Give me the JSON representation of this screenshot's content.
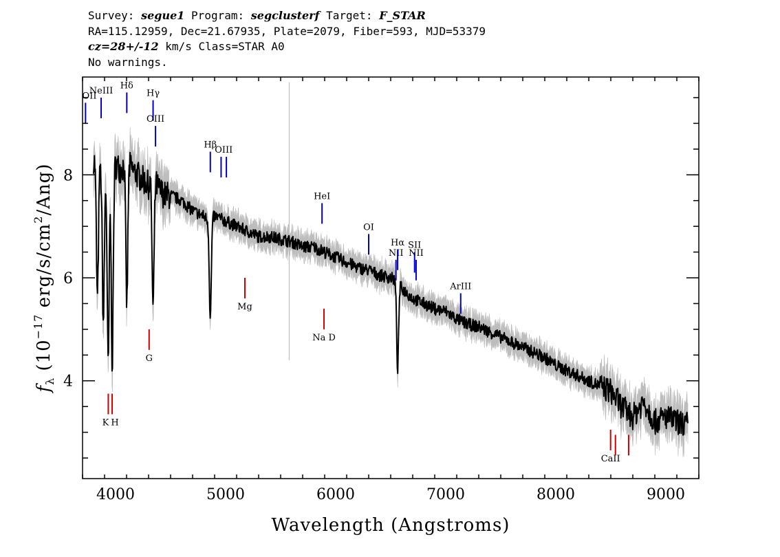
{
  "header": {
    "line1": {
      "survey_label": "Survey:",
      "survey": "segue1",
      "program_label": "Program:",
      "program": "segclusterf",
      "target_label": "Target:",
      "target": "F_STAR"
    },
    "line2": "RA=115.12959, Dec=21.67935, Plate=2079, Fiber=593, MJD=53379",
    "line3": {
      "cz": "cz=28+/-12",
      "rest": " km/s Class=STAR A0"
    },
    "line4": "No warnings."
  },
  "colors": {
    "flux": "#000000",
    "error": "#bdbdbd",
    "emission": "#0000cc",
    "absorption": "#cc0000",
    "axis": "#000000"
  },
  "chart_data": {
    "type": "line",
    "title": "",
    "xlabel": "Wavelength (Angstroms)",
    "ylabel": "fλ (10^-17 erg/s/cm^2/Ang)",
    "ylabel_parts": {
      "f": "f",
      "sub": "λ",
      "pre": " (10",
      "exp1": "−17",
      "mid": " erg/s/cm",
      "exp2": "2",
      "post": "/Ang)"
    },
    "xlim": [
      3700,
      9300
    ],
    "ylim": [
      2.1,
      9.9
    ],
    "xticks": [
      4000,
      5000,
      6000,
      7000,
      8000,
      9000
    ],
    "xtick_labels": [
      "4000",
      "5000",
      "6000",
      "7000",
      "8000",
      "9000"
    ],
    "yticks": [
      4,
      6,
      8
    ],
    "ytick_labels": [
      "4",
      "6",
      "8"
    ],
    "grid": false,
    "series": [
      {
        "role": "flux",
        "x": [
          3800,
          3830,
          3860,
          3900,
          3950,
          4000,
          4050,
          4100,
          4150,
          4200,
          4250,
          4300,
          4350,
          4400,
          4450,
          4500,
          4600,
          4700,
          4800,
          4850,
          4900,
          5000,
          5100,
          5200,
          5300,
          5400,
          5500,
          5600,
          5700,
          5800,
          5900,
          6000,
          6100,
          6200,
          6300,
          6400,
          6500,
          6560,
          6600,
          6650,
          6700,
          6800,
          6900,
          7000,
          7100,
          7200,
          7300,
          7400,
          7500,
          7600,
          7700,
          7800,
          7900,
          8000,
          8100,
          8200,
          8300,
          8400,
          8500,
          8600,
          8700,
          8800,
          8900,
          9000,
          9100,
          9200
        ],
        "y": [
          8.3,
          8.2,
          8.1,
          8.0,
          8.1,
          8.2,
          8.1,
          8.3,
          8.1,
          8.0,
          7.9,
          7.8,
          7.9,
          7.7,
          7.6,
          7.6,
          7.5,
          7.3,
          7.2,
          7.1,
          7.2,
          7.1,
          7.0,
          6.9,
          6.8,
          6.8,
          6.75,
          6.7,
          6.6,
          6.6,
          6.5,
          6.4,
          6.3,
          6.2,
          6.15,
          6.05,
          6.0,
          5.95,
          5.8,
          5.7,
          5.6,
          5.5,
          5.4,
          5.35,
          5.2,
          5.1,
          5.05,
          4.95,
          4.85,
          4.75,
          4.65,
          4.55,
          4.45,
          4.3,
          4.2,
          4.1,
          4.0,
          3.9,
          3.8,
          3.5,
          3.3,
          3.6,
          3.2,
          3.3,
          3.2,
          3.15
        ]
      },
      {
        "role": "absorption",
        "lines": [
          {
            "x": 3835,
            "depth": 2.6
          },
          {
            "x": 3889,
            "depth": 2.9
          },
          {
            "x": 3933,
            "depth": 3.8
          },
          {
            "x": 3970,
            "depth": 3.8
          },
          {
            "x": 4102,
            "depth": 2.8
          },
          {
            "x": 4341,
            "depth": 2.5
          },
          {
            "x": 4861,
            "depth": 1.9
          },
          {
            "x": 6563,
            "depth": 1.7
          }
        ]
      }
    ],
    "line_labels": [
      {
        "text": "OII",
        "x": 3727,
        "kind": "emission",
        "y_top": 9.4,
        "y_bot": 9.0
      },
      {
        "text": "NeIII",
        "x": 3869,
        "kind": "emission",
        "y_top": 9.5,
        "y_bot": 9.1
      },
      {
        "text": "Hδ",
        "x": 4102,
        "kind": "emission",
        "y_top": 9.6,
        "y_bot": 9.2
      },
      {
        "text": "Hγ",
        "x": 4341,
        "kind": "emission",
        "y_top": 9.45,
        "y_bot": 9.05
      },
      {
        "text": "OIII",
        "x": 4363,
        "kind": "emission",
        "y_top": 8.95,
        "y_bot": 8.55
      },
      {
        "text": "Hβ",
        "x": 4861,
        "kind": "emission",
        "y_top": 8.45,
        "y_bot": 8.05
      },
      {
        "text": "OIII",
        "x": 4959,
        "kind": "emission",
        "y_top": 8.35,
        "y_bot": 7.95,
        "pair": 5007
      },
      {
        "text": "HeI",
        "x": 5876,
        "kind": "emission",
        "y_top": 7.45,
        "y_bot": 7.05
      },
      {
        "text": "OI",
        "x": 6300,
        "kind": "emission",
        "y_top": 6.85,
        "y_bot": 6.45
      },
      {
        "text": "NII",
        "x": 6548,
        "kind": "emission",
        "y_top": 6.35,
        "y_bot": 5.95
      },
      {
        "text": "Hα",
        "x": 6563,
        "kind": "emission",
        "y_top": 6.55,
        "y_bot": 6.15
      },
      {
        "text": "SII",
        "x": 6717,
        "kind": "emission",
        "y_top": 6.5,
        "y_bot": 6.1
      },
      {
        "text": "NII",
        "x": 6731,
        "kind": "emission",
        "y_top": 6.35,
        "y_bot": 5.95
      },
      {
        "text": "ArIII",
        "x": 7136,
        "kind": "emission",
        "y_top": 5.7,
        "y_bot": 5.3
      },
      {
        "text": "Mg",
        "x": 5175,
        "kind": "absorption",
        "y_top": 6.0,
        "y_bot": 5.6
      },
      {
        "text": "Na D",
        "x": 5894,
        "kind": "absorption",
        "y_top": 5.4,
        "y_bot": 5.0
      },
      {
        "text": "G",
        "x": 4305,
        "kind": "absorption",
        "y_top": 5.0,
        "y_bot": 4.6
      },
      {
        "text": "K",
        "x": 3934,
        "kind": "absorption",
        "y_top": 3.75,
        "y_bot": 3.35
      },
      {
        "text": "H",
        "x": 3969,
        "kind": "absorption",
        "y_top": 3.75,
        "y_bot": 3.35
      },
      {
        "text": "CaII",
        "x": 8498,
        "kind": "absorption",
        "y_top": 3.05,
        "y_bot": 2.65
      },
      {
        "text": "",
        "x": 8542,
        "kind": "absorption",
        "y_top": 2.95,
        "y_bot": 2.55
      },
      {
        "text": "",
        "x": 8662,
        "kind": "absorption",
        "y_top": 2.95,
        "y_bot": 2.55
      }
    ]
  }
}
